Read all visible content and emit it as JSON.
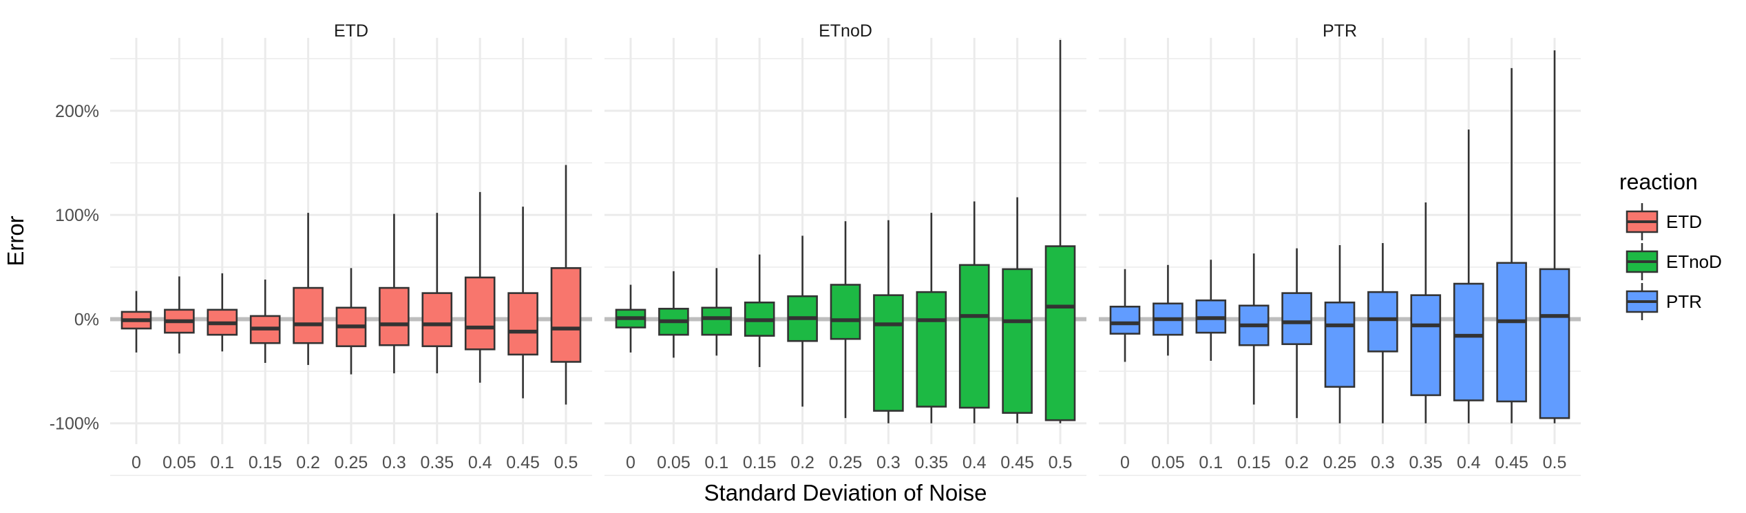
{
  "chart_data": {
    "type": "box",
    "xlabel": "Standard Deviation of Noise",
    "ylabel": "Error",
    "ylim": [
      -120,
      270
    ],
    "yticks": [
      -100,
      0,
      100,
      200
    ],
    "ytick_labels": [
      "-100%",
      "0%",
      "100%",
      "200%"
    ],
    "categories": [
      "0",
      "0.05",
      "0.1",
      "0.15",
      "0.2",
      "0.25",
      "0.3",
      "0.35",
      "0.4",
      "0.45",
      "0.5"
    ],
    "grid": true,
    "reference_line": 0,
    "legend": {
      "title": "reaction",
      "placement": "right",
      "entries": [
        "ETD",
        "ETnoD",
        "PTR"
      ]
    },
    "colors": {
      "ETD": "#F8766D",
      "ETnoD": "#1DB944",
      "PTR": "#619CFF",
      "outline": "#333333",
      "grid": "#EBEBEB",
      "zero_line": "#BEBEBE"
    },
    "panels": [
      {
        "title": "ETD",
        "color": "#F8766D",
        "boxes": [
          {
            "x": "0",
            "whisker_low": -32,
            "q1": -9,
            "median": -1,
            "q3": 7,
            "whisker_high": 27
          },
          {
            "x": "0.05",
            "whisker_low": -33,
            "q1": -13,
            "median": -2,
            "q3": 9,
            "whisker_high": 41
          },
          {
            "x": "0.1",
            "whisker_low": -31,
            "q1": -15,
            "median": -4,
            "q3": 9,
            "whisker_high": 44
          },
          {
            "x": "0.15",
            "whisker_low": -42,
            "q1": -23,
            "median": -9,
            "q3": 3,
            "whisker_high": 38
          },
          {
            "x": "0.2",
            "whisker_low": -44,
            "q1": -23,
            "median": -5,
            "q3": 30,
            "whisker_high": 102
          },
          {
            "x": "0.25",
            "whisker_low": -53,
            "q1": -26,
            "median": -7,
            "q3": 11,
            "whisker_high": 49
          },
          {
            "x": "0.3",
            "whisker_low": -52,
            "q1": -25,
            "median": -5,
            "q3": 30,
            "whisker_high": 101
          },
          {
            "x": "0.35",
            "whisker_low": -52,
            "q1": -26,
            "median": -5,
            "q3": 25,
            "whisker_high": 102
          },
          {
            "x": "0.4",
            "whisker_low": -61,
            "q1": -29,
            "median": -8,
            "q3": 40,
            "whisker_high": 122
          },
          {
            "x": "0.45",
            "whisker_low": -76,
            "q1": -34,
            "median": -12,
            "q3": 25,
            "whisker_high": 108
          },
          {
            "x": "0.5",
            "whisker_low": -82,
            "q1": -41,
            "median": -9,
            "q3": 49,
            "whisker_high": 148
          }
        ]
      },
      {
        "title": "ETnoD",
        "color": "#1DB944",
        "boxes": [
          {
            "x": "0",
            "whisker_low": -32,
            "q1": -8,
            "median": 1,
            "q3": 9,
            "whisker_high": 33
          },
          {
            "x": "0.05",
            "whisker_low": -37,
            "q1": -15,
            "median": -2,
            "q3": 10,
            "whisker_high": 46
          },
          {
            "x": "0.1",
            "whisker_low": -35,
            "q1": -15,
            "median": 1,
            "q3": 11,
            "whisker_high": 49
          },
          {
            "x": "0.15",
            "whisker_low": -46,
            "q1": -16,
            "median": -1,
            "q3": 16,
            "whisker_high": 62
          },
          {
            "x": "0.2",
            "whisker_low": -84,
            "q1": -21,
            "median": 1,
            "q3": 22,
            "whisker_high": 80
          },
          {
            "x": "0.25",
            "whisker_low": -95,
            "q1": -19,
            "median": -1,
            "q3": 33,
            "whisker_high": 94
          },
          {
            "x": "0.3",
            "whisker_low": -100,
            "q1": -88,
            "median": -5,
            "q3": 23,
            "whisker_high": 95
          },
          {
            "x": "0.35",
            "whisker_low": -100,
            "q1": -84,
            "median": -1,
            "q3": 26,
            "whisker_high": 102
          },
          {
            "x": "0.4",
            "whisker_low": -100,
            "q1": -85,
            "median": 3,
            "q3": 52,
            "whisker_high": 113
          },
          {
            "x": "0.45",
            "whisker_low": -100,
            "q1": -90,
            "median": -2,
            "q3": 48,
            "whisker_high": 117
          },
          {
            "x": "0.5",
            "whisker_low": -100,
            "q1": -97,
            "median": 12,
            "q3": 70,
            "whisker_high": 268
          }
        ]
      },
      {
        "title": "PTR",
        "color": "#619CFF",
        "boxes": [
          {
            "x": "0",
            "whisker_low": -41,
            "q1": -14,
            "median": -4,
            "q3": 12,
            "whisker_high": 48
          },
          {
            "x": "0.05",
            "whisker_low": -35,
            "q1": -15,
            "median": 0,
            "q3": 15,
            "whisker_high": 52
          },
          {
            "x": "0.1",
            "whisker_low": -40,
            "q1": -13,
            "median": 1,
            "q3": 18,
            "whisker_high": 57
          },
          {
            "x": "0.15",
            "whisker_low": -82,
            "q1": -25,
            "median": -6,
            "q3": 13,
            "whisker_high": 63
          },
          {
            "x": "0.2",
            "whisker_low": -95,
            "q1": -24,
            "median": -3,
            "q3": 25,
            "whisker_high": 68
          },
          {
            "x": "0.25",
            "whisker_low": -100,
            "q1": -65,
            "median": -6,
            "q3": 16,
            "whisker_high": 71
          },
          {
            "x": "0.3",
            "whisker_low": -100,
            "q1": -31,
            "median": 0,
            "q3": 26,
            "whisker_high": 73
          },
          {
            "x": "0.35",
            "whisker_low": -100,
            "q1": -73,
            "median": -6,
            "q3": 23,
            "whisker_high": 112
          },
          {
            "x": "0.4",
            "whisker_low": -100,
            "q1": -78,
            "median": -16,
            "q3": 34,
            "whisker_high": 182
          },
          {
            "x": "0.45",
            "whisker_low": -100,
            "q1": -79,
            "median": -2,
            "q3": 54,
            "whisker_high": 241
          },
          {
            "x": "0.5",
            "whisker_low": -100,
            "q1": -95,
            "median": 3,
            "q3": 48,
            "whisker_high": 258
          }
        ]
      }
    ]
  }
}
